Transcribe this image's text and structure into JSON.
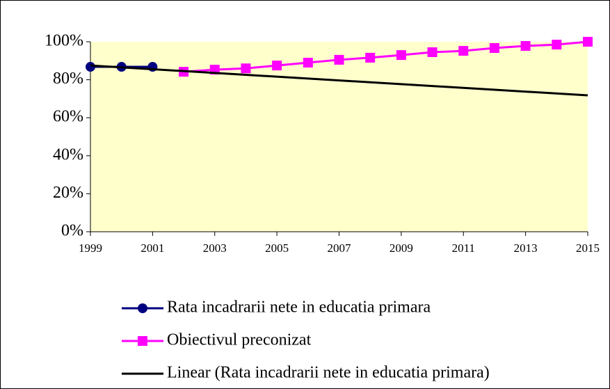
{
  "chart_data": {
    "type": "line",
    "xlim": [
      1999,
      2015
    ],
    "xticks": [
      1999,
      2001,
      2003,
      2005,
      2007,
      2009,
      2011,
      2013,
      2015
    ],
    "ylim": [
      0,
      100
    ],
    "yticks": [
      {
        "value": 0,
        "label": "0%"
      },
      {
        "value": 20,
        "label": "20%"
      },
      {
        "value": 40,
        "label": "40%"
      },
      {
        "value": 60,
        "label": "60%"
      },
      {
        "value": 80,
        "label": "80%"
      },
      {
        "value": 100,
        "label": "100%"
      }
    ],
    "background": "#ffffcc",
    "legend": "bottom",
    "series": [
      {
        "name": "Rata incadrarii nete in educatia primara",
        "color": "#000080",
        "marker": "circle",
        "x": [
          1999,
          2000,
          2001
        ],
        "values": [
          86.8,
          86.8,
          86.8
        ]
      },
      {
        "name": "Obiectivul preconizat",
        "color": "#ff00ff",
        "marker": "square",
        "x": [
          2002,
          2003,
          2004,
          2005,
          2006,
          2007,
          2008,
          2009,
          2010,
          2011,
          2012,
          2013,
          2014,
          2015
        ],
        "values": [
          84.2,
          85.3,
          86,
          87.5,
          89,
          90.5,
          91.6,
          93,
          94.5,
          95.2,
          96.7,
          97.8,
          98.5,
          100
        ]
      },
      {
        "name": "Linear (Rata incadrarii nete in educatia primara)",
        "color": "#000000",
        "marker": "none",
        "x": [
          1999,
          2015
        ],
        "values": [
          87.5,
          71.8
        ]
      }
    ]
  }
}
